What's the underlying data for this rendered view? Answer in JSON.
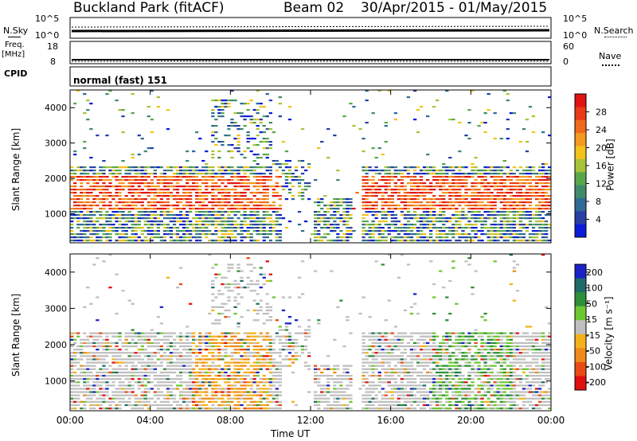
{
  "header": {
    "station": "Buckland Park (fitACF)",
    "beam": "Beam 02",
    "date_range": "30/Apr/2015 - 01/May/2015"
  },
  "noise_panel": {
    "left_label": "N.Sky",
    "right_label": "N.Search",
    "left_ticks": [
      "10^5",
      "10^0"
    ],
    "right_ticks": [
      "10^5",
      "10^0"
    ]
  },
  "freq_panel": {
    "left_label_line1": "Freq.",
    "left_label_line2": "[MHz]",
    "right_label": "Nave",
    "left_ticks": [
      "18",
      "8"
    ],
    "right_ticks": [
      "60",
      "0"
    ]
  },
  "cpid_panel": {
    "label": "CPID",
    "program": "normal (fast) 151"
  },
  "chart_data": [
    {
      "type": "heatmap",
      "name": "power",
      "xlabel": "Time UT",
      "ylabel": "Slant Range [km]",
      "x_ticks": [
        "00:00",
        "04:00",
        "08:00",
        "12:00",
        "16:00",
        "20:00",
        "00:00"
      ],
      "x_range_hours": [
        0,
        24
      ],
      "ylim": [
        180,
        4500
      ],
      "y_ticks": [
        1000,
        2000,
        3000,
        4000
      ],
      "colorbar_label": "Power [dB]",
      "colorbar_ticks": [
        4,
        8,
        12,
        16,
        20,
        24,
        28
      ],
      "colorbar_range": [
        0,
        32
      ],
      "colors": [
        "#0a1cd8",
        "#2a3fa6",
        "#2f6b96",
        "#3f8c6a",
        "#58a84b",
        "#a8c33a",
        "#f3c21b",
        "#f59a1e",
        "#f06a1c",
        "#ea3a18",
        "#e01414"
      ]
    },
    {
      "type": "heatmap",
      "name": "velocity",
      "xlabel": "Time UT",
      "ylabel": "Slant Range [km]",
      "x_ticks": [
        "00:00",
        "04:00",
        "08:00",
        "12:00",
        "16:00",
        "20:00",
        "00:00"
      ],
      "x_range_hours": [
        0,
        24
      ],
      "ylim": [
        180,
        4500
      ],
      "y_ticks": [
        1000,
        2000,
        3000,
        4000
      ],
      "colorbar_label": "Velocity [m s⁻¹]",
      "colorbar_ticks": [
        200,
        100,
        50,
        15,
        -15,
        -50,
        -100,
        -200
      ],
      "colors": [
        "#1a22c8",
        "#1e6b6a",
        "#2f8f3a",
        "#6cc830",
        "#bfbfbf",
        "#f4b21a",
        "#f08a1a",
        "#ea4a16",
        "#e01010"
      ]
    }
  ]
}
